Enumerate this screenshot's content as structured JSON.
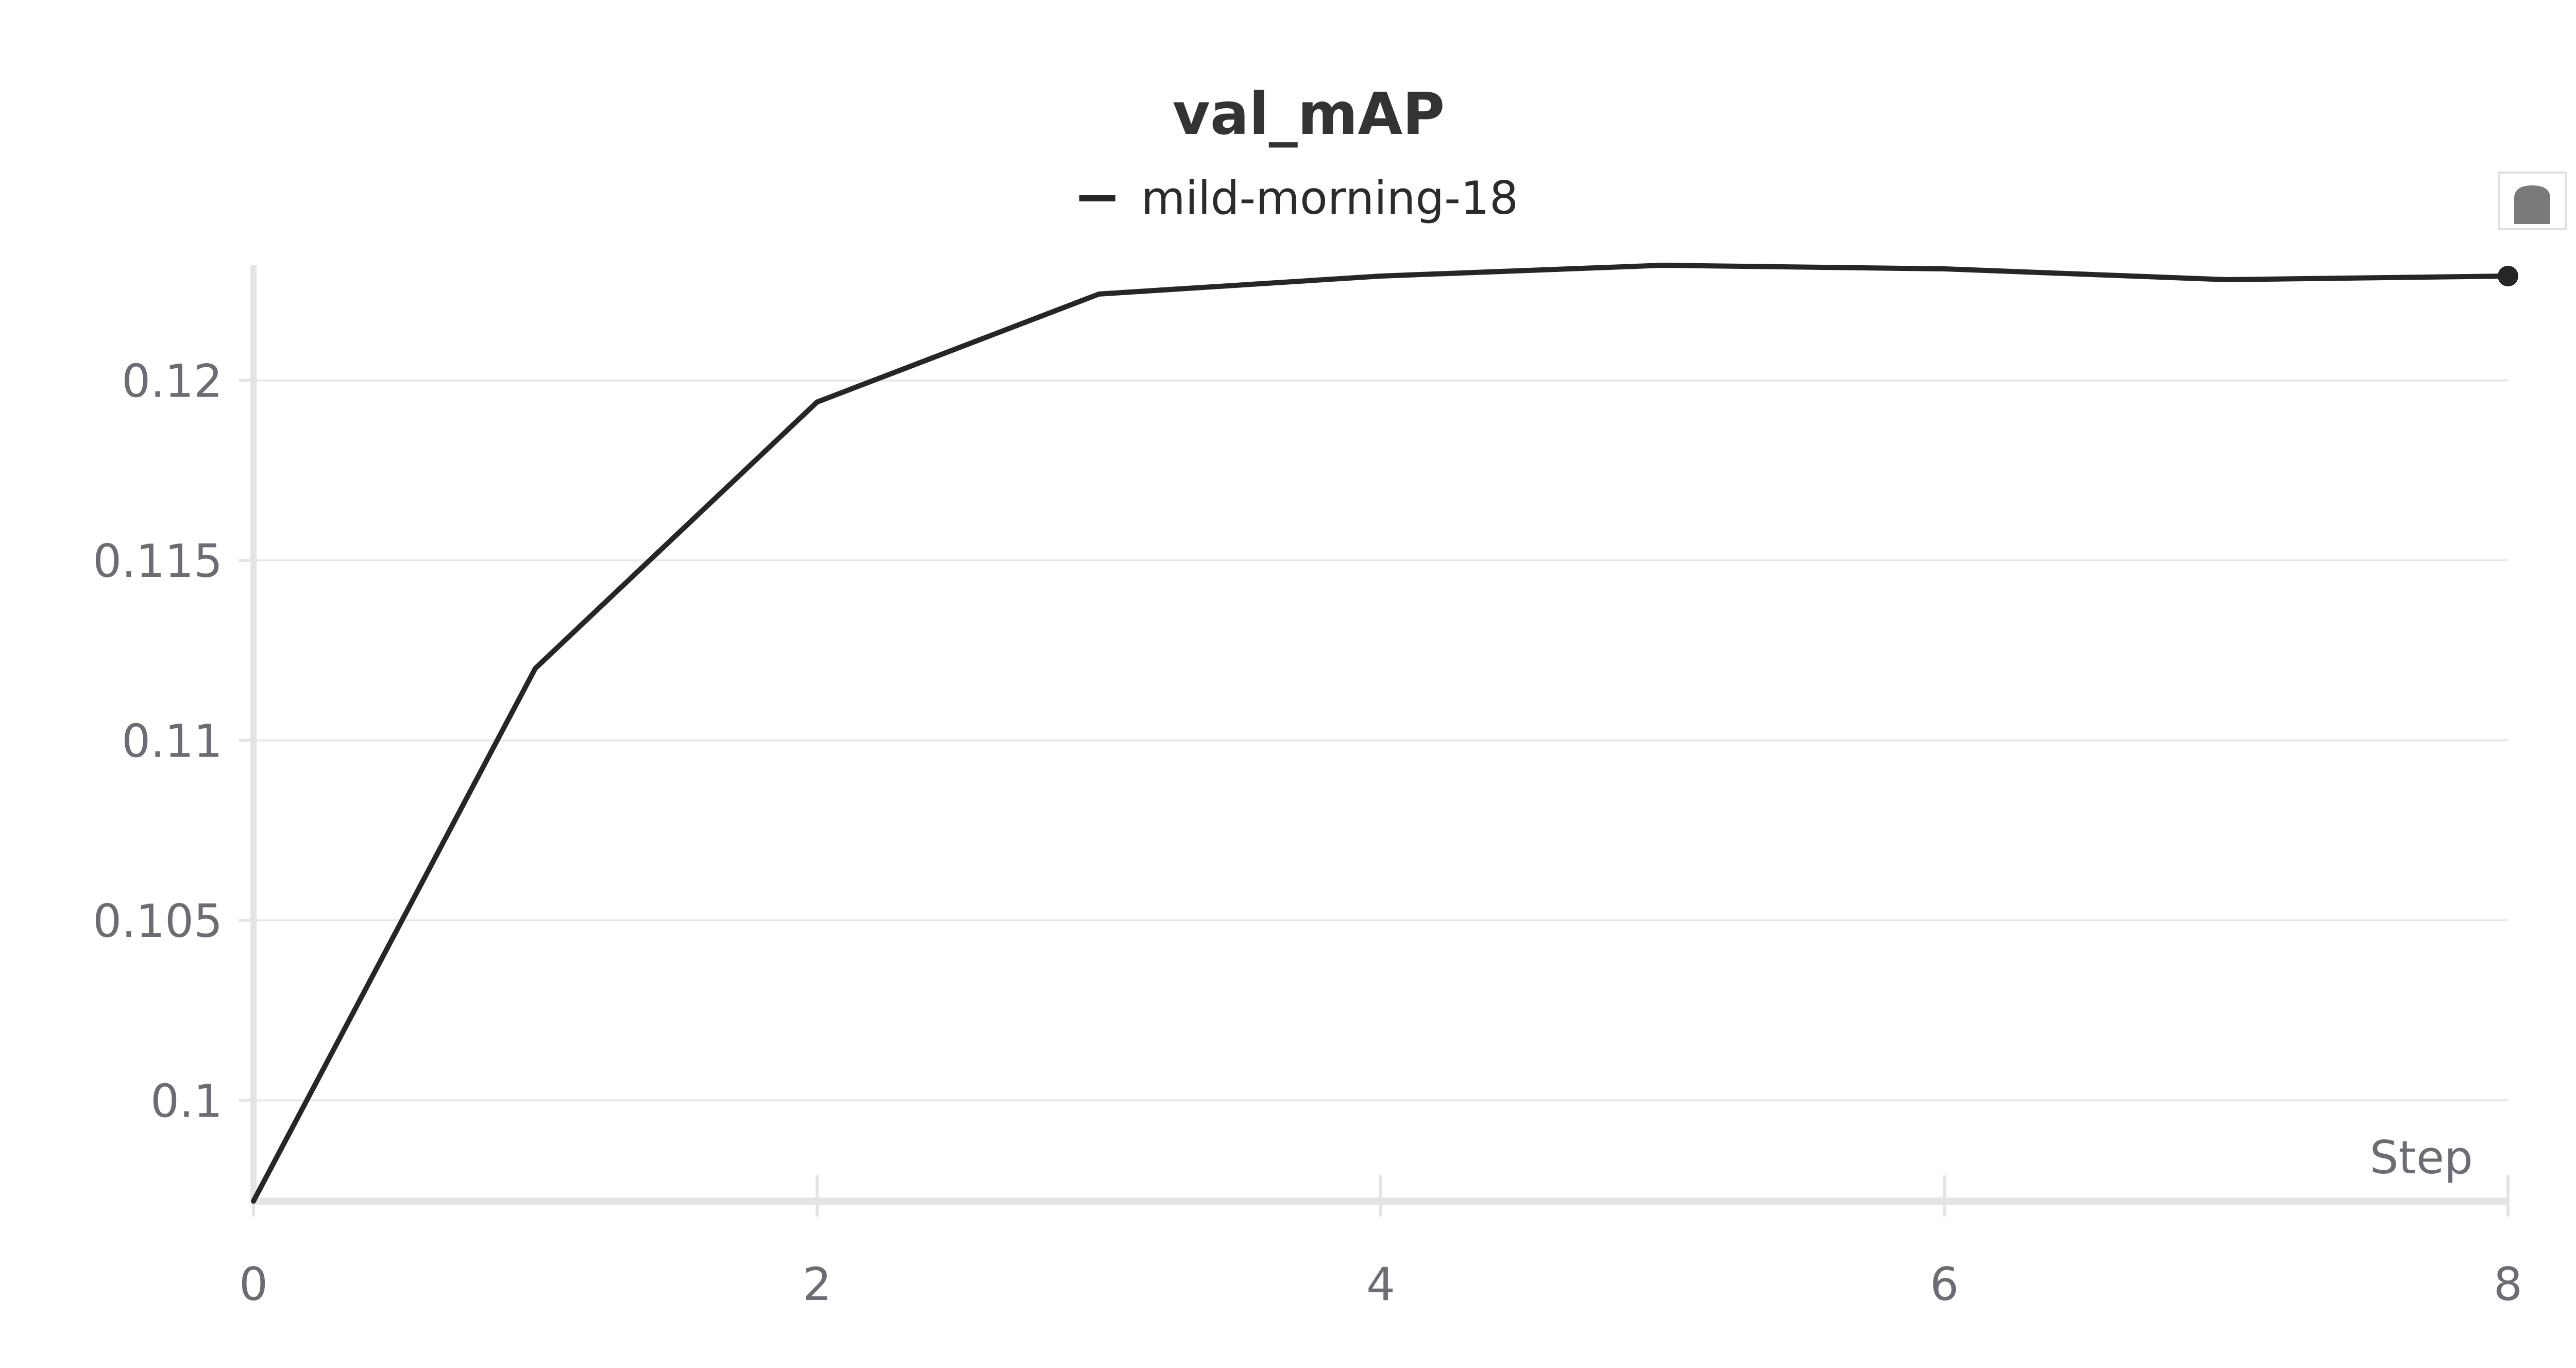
{
  "chart_data": {
    "type": "line",
    "title": "val_mAP",
    "xlabel": "Step",
    "ylabel": "",
    "x": [
      0,
      1,
      2,
      3,
      4,
      5,
      6,
      7,
      8
    ],
    "series": [
      {
        "name": "mild-morning-18",
        "values": [
          0.0972,
          0.112,
          0.1194,
          0.1224,
          0.1229,
          0.1232,
          0.1231,
          0.1228,
          0.1229
        ]
      }
    ],
    "xlim": [
      0,
      8
    ],
    "ylim": [
      0.0972,
      0.1232
    ],
    "x_ticks": [
      0,
      2,
      4,
      6,
      8
    ],
    "x_tick_labels": [
      "0",
      "2",
      "4",
      "6",
      "8"
    ],
    "y_ticks": [
      0.1,
      0.105,
      0.11,
      0.115,
      0.12
    ],
    "y_tick_labels": [
      "0.1",
      "0.105",
      "0.11",
      "0.115",
      "0.12"
    ],
    "grid": true,
    "legend_position": "top-center",
    "colors": {
      "line": "#262626",
      "grid": "#e8e8e8",
      "axis": "#e4e4e4",
      "tick_text": "#6c6c74",
      "title_text": "#333333"
    }
  }
}
